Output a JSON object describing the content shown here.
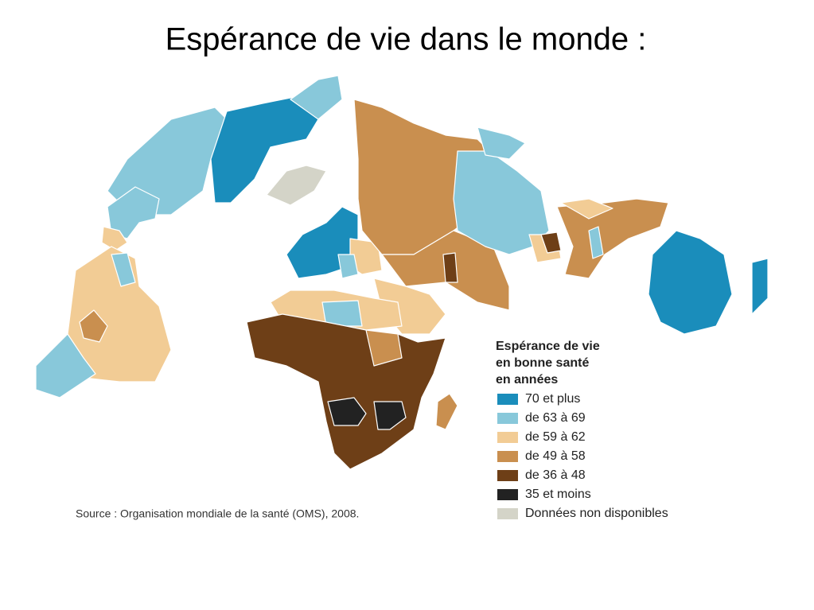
{
  "title": "Espérance de vie dans le monde :",
  "legend": {
    "title": [
      "Espérance de vie",
      "en bonne santé",
      "en années"
    ],
    "items": [
      {
        "label": "70 et plus",
        "color": "#1a8dbb"
      },
      {
        "label": "de 63 à 69",
        "color": "#88c8da"
      },
      {
        "label": "de 59 à 62",
        "color": "#f2cc95"
      },
      {
        "label": "de 49 à 58",
        "color": "#c98f4f"
      },
      {
        "label": "de 36 à 48",
        "color": "#6e3f17"
      },
      {
        "label": "35 et moins",
        "color": "#222222"
      },
      {
        "label": "Données non disponibles",
        "color": "#d4d4c8"
      }
    ]
  },
  "source": "Source : Organisation mondiale de la santé (OMS), 2008."
}
